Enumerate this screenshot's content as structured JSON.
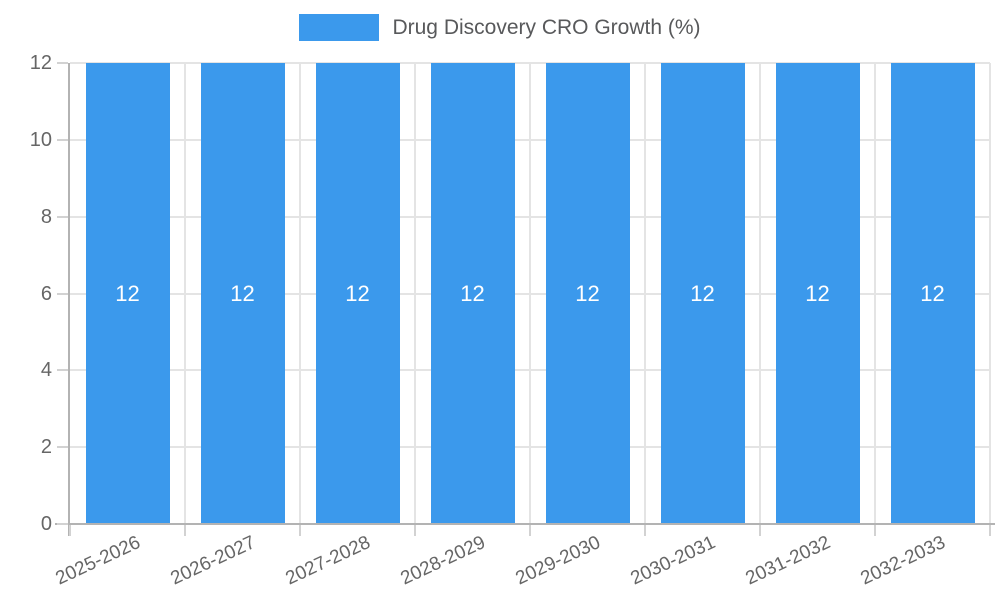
{
  "chart_data": {
    "type": "bar",
    "title": "Drug Discovery CRO Growth (%)",
    "categories": [
      "2025-2026",
      "2026-2027",
      "2027-2028",
      "2028-2029",
      "2029-2030",
      "2030-2031",
      "2031-2032",
      "2032-2033"
    ],
    "values": [
      12,
      12,
      12,
      12,
      12,
      12,
      12,
      12
    ],
    "bar_value_labels": [
      "12",
      "12",
      "12",
      "12",
      "12",
      "12",
      "12",
      "12"
    ],
    "xlabel": "",
    "ylabel": "",
    "ylim": [
      0,
      12
    ],
    "yticks": [
      0,
      2,
      4,
      6,
      8,
      10,
      12
    ],
    "grid": true,
    "legend_position": "top-center",
    "colors": {
      "bar": "#3B99EC",
      "bar_label": "#FFFFFF",
      "axis_line": "#B3B3B3",
      "gridline": "#E4E4E4",
      "tick": "#D2D2D2",
      "tick_label": "#666666",
      "legend_text": "#58595B",
      "background": "#FFFFFF"
    }
  }
}
